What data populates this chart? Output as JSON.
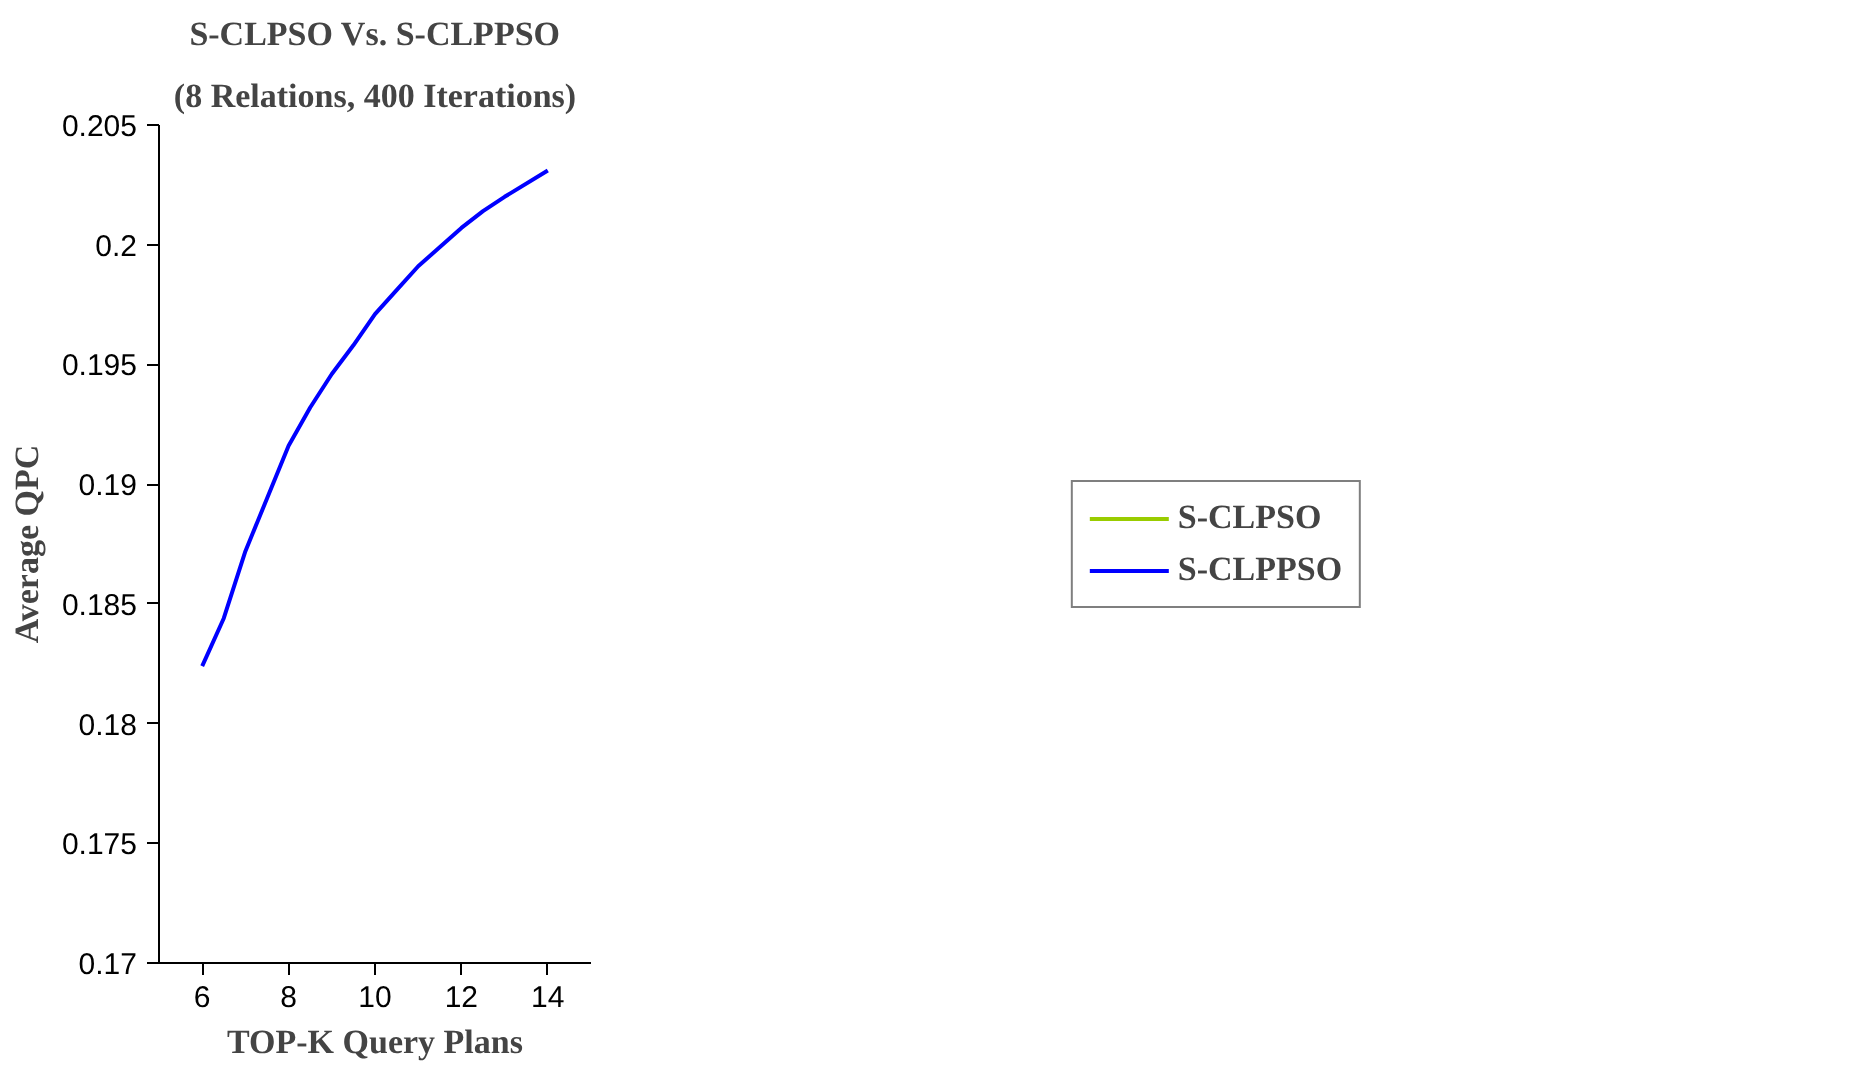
{
  "chart_data": {
    "type": "line",
    "title": "S-CLPSO Vs. S-CLPPSO",
    "subtitle": "(8 Relations, 400 Iterations)",
    "xlabel": "TOP-K Query Plans",
    "ylabel": "Average QPC",
    "x": [
      6,
      6.5,
      7,
      7.5,
      8,
      8.5,
      9,
      9.5,
      10,
      10.5,
      11,
      12,
      12.5,
      13,
      14
    ],
    "series": [
      {
        "name": "S-CLPSO",
        "color": "#99cc00",
        "values": [
          null,
          null,
          null,
          null,
          null,
          null,
          null,
          null,
          null,
          null,
          null,
          null,
          null,
          null,
          null
        ]
      },
      {
        "name": "S-CLPPSO",
        "color": "#0000ff",
        "values": [
          0.1824,
          0.1844,
          0.1872,
          0.1894,
          0.1916,
          0.1932,
          0.1946,
          0.1958,
          0.1971,
          0.1981,
          0.1991,
          0.2007,
          0.2014,
          0.202,
          0.2031
        ]
      }
    ],
    "xlim": [
      5,
      15
    ],
    "xticks": [
      6,
      8,
      10,
      12,
      14
    ],
    "ylim": [
      0.17,
      0.205
    ],
    "yticks": [
      0.17,
      0.175,
      0.18,
      0.185,
      0.19,
      0.195,
      0.2,
      0.205
    ],
    "grid": false,
    "legend": "right",
    "marker": "none",
    "line_style": "solid"
  }
}
